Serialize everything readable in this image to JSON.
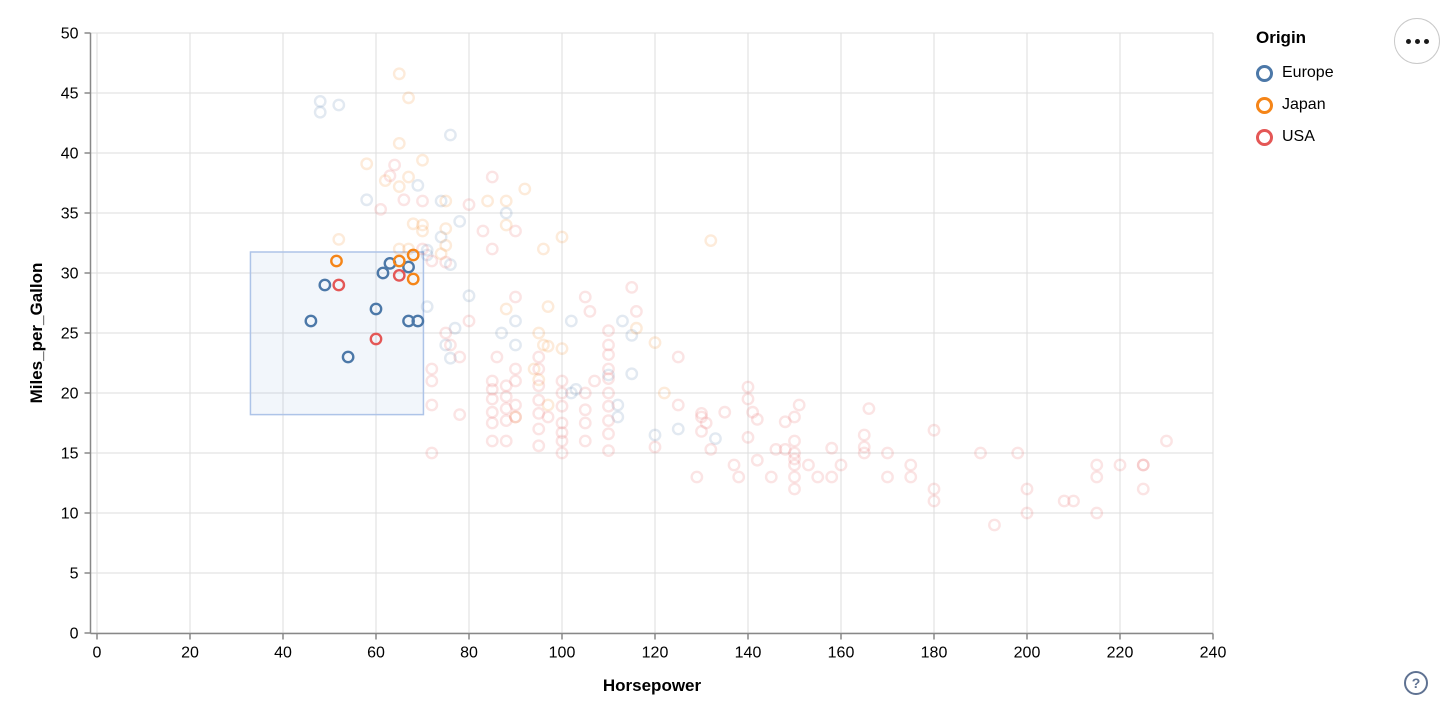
{
  "legend": {
    "title": "Origin",
    "items": [
      {
        "label": "Europe",
        "color": "#4c78a8"
      },
      {
        "label": "Japan",
        "color": "#f58518"
      },
      {
        "label": "USA",
        "color": "#e45756"
      }
    ]
  },
  "controls": {
    "help_label": "?"
  },
  "chart_data": {
    "type": "scatter",
    "title": "",
    "xlabel": "Horsepower",
    "ylabel": "Miles_per_Gallon",
    "xlim": [
      0,
      240
    ],
    "ylim": [
      0,
      50
    ],
    "xticks": [
      0,
      20,
      40,
      60,
      80,
      100,
      120,
      140,
      160,
      180,
      200,
      220,
      240
    ],
    "yticks": [
      0,
      5,
      10,
      15,
      20,
      25,
      30,
      35,
      40,
      45,
      50
    ],
    "grid": true,
    "legend_position": "top-right",
    "colors": {
      "Europe": "#4c78a8",
      "Japan": "#f58518",
      "USA": "#e45756"
    },
    "grid_color": "#dddddd",
    "axis_color": "#888888",
    "unselected_opacity": 0.16,
    "brush": {
      "x": [
        33,
        70.2
      ],
      "y": [
        18.2,
        31.75
      ],
      "fill": "#6e96d8",
      "fill_opacity": 0.09,
      "stroke": "#aec4e8"
    },
    "series": [
      {
        "name": "Europe",
        "selected": [
          [
            46,
            26
          ],
          [
            49,
            29
          ],
          [
            54,
            23
          ],
          [
            60,
            27
          ],
          [
            61.5,
            30
          ],
          [
            63,
            30.8
          ],
          [
            67,
            30.5
          ],
          [
            67,
            26
          ],
          [
            69,
            26
          ]
        ],
        "unselected": [
          [
            48,
            44.3
          ],
          [
            48,
            43.4
          ],
          [
            52,
            44
          ],
          [
            76,
            41.5
          ],
          [
            69,
            37.3
          ],
          [
            74,
            36
          ],
          [
            58,
            36.1
          ],
          [
            88,
            35
          ],
          [
            78,
            34.3
          ],
          [
            74,
            33
          ],
          [
            71,
            31.9
          ],
          [
            71,
            31.5
          ],
          [
            76,
            30.7
          ],
          [
            80,
            28.1
          ],
          [
            71,
            27.2
          ],
          [
            90,
            26
          ],
          [
            102,
            26
          ],
          [
            113,
            26
          ],
          [
            77,
            25.4
          ],
          [
            87,
            25
          ],
          [
            115,
            24.8
          ],
          [
            90,
            24
          ],
          [
            75,
            24
          ],
          [
            76,
            22.9
          ],
          [
            115,
            21.6
          ],
          [
            110,
            21.5
          ],
          [
            103,
            20.3
          ],
          [
            102,
            20
          ],
          [
            112,
            19
          ],
          [
            112,
            18
          ],
          [
            125,
            17
          ],
          [
            120,
            16.5
          ],
          [
            133,
            16.2
          ]
        ]
      },
      {
        "name": "Japan",
        "selected": [
          [
            51.5,
            31
          ],
          [
            65,
            31
          ],
          [
            68,
            31.5
          ],
          [
            68,
            29.5
          ]
        ],
        "unselected": [
          [
            65,
            46.6
          ],
          [
            67,
            44.6
          ],
          [
            65,
            40.8
          ],
          [
            70,
            39.4
          ],
          [
            58,
            39.1
          ],
          [
            67,
            38
          ],
          [
            62,
            37.7
          ],
          [
            65,
            37.2
          ],
          [
            92,
            37
          ],
          [
            88,
            36
          ],
          [
            75,
            36
          ],
          [
            84,
            36
          ],
          [
            70,
            33.5
          ],
          [
            75,
            33.7
          ],
          [
            68,
            34.1
          ],
          [
            70,
            34
          ],
          [
            52,
            32.8
          ],
          [
            65,
            32
          ],
          [
            67,
            32
          ],
          [
            75,
            32.3
          ],
          [
            96,
            32
          ],
          [
            100,
            33
          ],
          [
            132,
            32.7
          ],
          [
            74,
            31.6
          ],
          [
            88,
            34
          ],
          [
            88,
            27
          ],
          [
            97,
            27.2
          ],
          [
            95,
            25
          ],
          [
            96,
            24
          ],
          [
            94,
            22
          ],
          [
            97,
            23.9
          ],
          [
            100,
            23.7
          ],
          [
            95,
            21.1
          ],
          [
            97,
            19
          ],
          [
            90,
            18
          ],
          [
            120,
            24.2
          ],
          [
            116,
            25.4
          ],
          [
            122,
            20
          ]
        ]
      },
      {
        "name": "USA",
        "selected": [
          [
            52,
            29
          ],
          [
            60,
            24.5
          ],
          [
            65,
            29.8
          ]
        ],
        "unselected": [
          [
            63,
            38.1
          ],
          [
            64,
            39
          ],
          [
            85,
            38
          ],
          [
            66,
            36.1
          ],
          [
            70,
            36
          ],
          [
            80,
            35.7
          ],
          [
            61,
            35.3
          ],
          [
            85,
            32
          ],
          [
            90,
            33.5
          ],
          [
            83,
            33.5
          ],
          [
            70,
            32
          ],
          [
            75,
            30.9
          ],
          [
            72,
            31
          ],
          [
            90,
            28
          ],
          [
            105,
            28
          ],
          [
            115,
            28.8
          ],
          [
            116,
            26.8
          ],
          [
            106,
            26.8
          ],
          [
            75,
            25
          ],
          [
            80,
            26
          ],
          [
            76,
            24
          ],
          [
            78,
            23
          ],
          [
            86,
            23
          ],
          [
            72,
            22
          ],
          [
            72,
            21
          ],
          [
            72,
            19
          ],
          [
            90,
            22
          ],
          [
            95,
            22
          ],
          [
            95,
            23
          ],
          [
            85,
            21
          ],
          [
            85,
            20.3
          ],
          [
            85,
            19.5
          ],
          [
            85,
            18.4
          ],
          [
            85,
            17.5
          ],
          [
            85,
            16
          ],
          [
            88,
            20.6
          ],
          [
            88,
            19.7
          ],
          [
            88,
            18.7
          ],
          [
            88,
            17.7
          ],
          [
            88,
            16
          ],
          [
            90,
            21
          ],
          [
            90,
            19
          ],
          [
            90,
            18
          ],
          [
            95,
            20.6
          ],
          [
            95,
            19.4
          ],
          [
            95,
            18.3
          ],
          [
            95,
            17
          ],
          [
            95,
            15.6
          ],
          [
            97,
            18
          ],
          [
            100,
            21
          ],
          [
            100,
            20
          ],
          [
            100,
            18.9
          ],
          [
            100,
            17.5
          ],
          [
            100,
            16.7
          ],
          [
            100,
            16
          ],
          [
            100,
            15
          ],
          [
            105,
            20
          ],
          [
            105,
            18.6
          ],
          [
            105,
            17.5
          ],
          [
            105,
            16
          ],
          [
            107,
            21
          ],
          [
            110,
            25.2
          ],
          [
            110,
            24
          ],
          [
            110,
            23.2
          ],
          [
            110,
            22
          ],
          [
            110,
            21.2
          ],
          [
            110,
            20
          ],
          [
            110,
            18.9
          ],
          [
            110,
            17.7
          ],
          [
            110,
            16.6
          ],
          [
            110,
            15.2
          ],
          [
            120,
            15.5
          ],
          [
            125,
            19
          ],
          [
            125,
            23
          ],
          [
            129,
            13
          ],
          [
            130,
            18.3
          ],
          [
            130,
            18
          ],
          [
            131,
            17.5
          ],
          [
            130,
            16.8
          ],
          [
            132,
            15.3
          ],
          [
            135,
            18.4
          ],
          [
            137,
            14
          ],
          [
            138,
            13
          ],
          [
            140,
            20.5
          ],
          [
            140,
            19.5
          ],
          [
            141,
            18.4
          ],
          [
            142,
            17.8
          ],
          [
            140,
            16.3
          ],
          [
            142,
            14.4
          ],
          [
            145,
            13
          ],
          [
            146,
            15.3
          ],
          [
            148,
            17.6
          ],
          [
            148,
            15.3
          ],
          [
            150,
            18
          ],
          [
            151,
            19
          ],
          [
            150,
            16
          ],
          [
            150,
            15
          ],
          [
            150,
            14.5
          ],
          [
            150,
            14
          ],
          [
            150,
            13
          ],
          [
            150,
            12
          ],
          [
            153,
            14
          ],
          [
            155,
            13
          ],
          [
            158,
            15.4
          ],
          [
            158,
            13
          ],
          [
            160,
            14
          ],
          [
            165,
            16.5
          ],
          [
            165,
            15.5
          ],
          [
            165,
            15
          ],
          [
            166,
            18.7
          ],
          [
            170,
            15
          ],
          [
            170,
            13
          ],
          [
            175,
            14
          ],
          [
            175,
            13
          ],
          [
            180,
            16.9
          ],
          [
            180,
            12
          ],
          [
            180,
            11
          ],
          [
            190,
            15
          ],
          [
            193,
            9
          ],
          [
            198,
            15
          ],
          [
            200,
            12
          ],
          [
            200,
            10
          ],
          [
            208,
            11
          ],
          [
            210,
            11
          ],
          [
            215,
            14
          ],
          [
            215,
            13
          ],
          [
            215,
            10
          ],
          [
            220,
            14
          ],
          [
            225,
            14
          ],
          [
            225,
            14
          ],
          [
            225,
            12
          ],
          [
            230,
            16
          ],
          [
            72,
            15
          ],
          [
            78,
            18.2
          ]
        ]
      }
    ]
  }
}
